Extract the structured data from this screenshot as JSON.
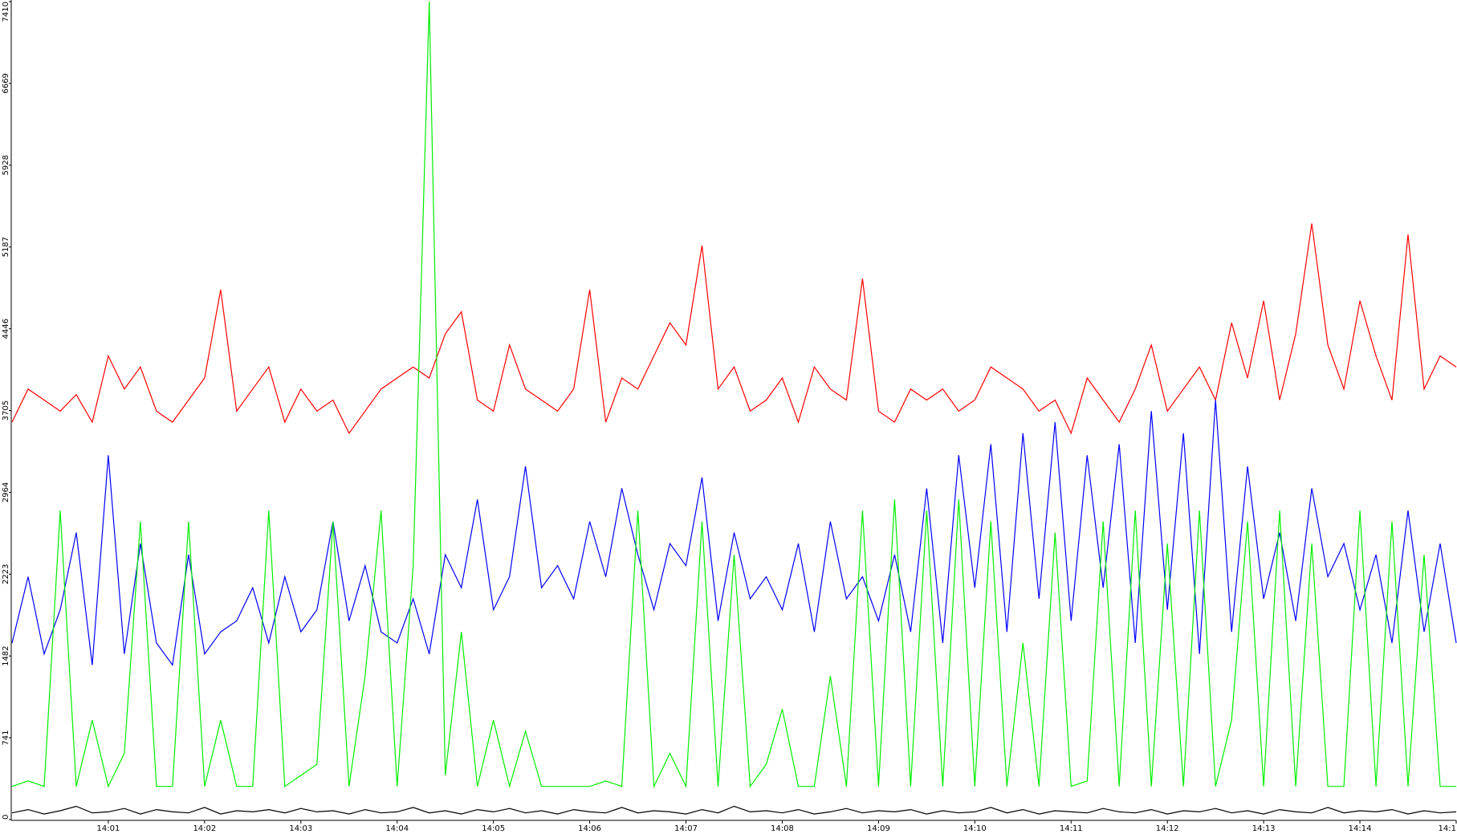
{
  "chart_data": {
    "type": "line",
    "categories": [
      null,
      null,
      null,
      null,
      null,
      null,
      "14:01",
      null,
      null,
      null,
      null,
      null,
      "14:02",
      null,
      null,
      null,
      null,
      null,
      "14:03",
      null,
      null,
      null,
      null,
      null,
      "14:04",
      null,
      null,
      null,
      null,
      null,
      "14:05",
      null,
      null,
      null,
      null,
      null,
      "14:06",
      null,
      null,
      null,
      null,
      null,
      "14:07",
      null,
      null,
      null,
      null,
      null,
      "14:08",
      null,
      null,
      null,
      null,
      null,
      "14:09",
      null,
      null,
      null,
      null,
      null,
      "14:10",
      null,
      null,
      null,
      null,
      null,
      "14:11",
      null,
      null,
      null,
      null,
      null,
      "14:12",
      null,
      null,
      null,
      null,
      null,
      "14:13",
      null,
      null,
      null,
      null,
      null,
      "14:14",
      null,
      null,
      null,
      null,
      null,
      "14:1"
    ],
    "series": [
      {
        "color": "#ff0000",
        "values": [
          3600,
          3900,
          3800,
          3700,
          3850,
          3600,
          4200,
          3900,
          4100,
          3700,
          3600,
          3800,
          4000,
          4800,
          3700,
          3900,
          4100,
          3600,
          3900,
          3700,
          3800,
          3500,
          3700,
          3900,
          4000,
          4100,
          4000,
          4400,
          4600,
          3800,
          3700,
          4300,
          3900,
          3800,
          3700,
          3900,
          4800,
          3600,
          4000,
          3900,
          4200,
          4500,
          4300,
          5200,
          3900,
          4100,
          3700,
          3800,
          4000,
          3600,
          4100,
          3900,
          3800,
          4900,
          3700,
          3600,
          3900,
          3800,
          3900,
          3700,
          3800,
          4100,
          4000,
          3900,
          3700,
          3800,
          3500,
          4000,
          3800,
          3600,
          3900,
          4300,
          3700,
          3900,
          4100,
          3800,
          4500,
          4000,
          4700,
          3800,
          4400,
          5400,
          4300,
          3900,
          4700,
          4200,
          3800,
          5300,
          3900,
          4200,
          4100
        ]
      },
      {
        "color": "#0000ff",
        "values": [
          1600,
          2200,
          1500,
          1900,
          2600,
          1400,
          3300,
          1500,
          2500,
          1600,
          1400,
          2400,
          1500,
          1700,
          1800,
          2100,
          1600,
          2200,
          1700,
          1900,
          2700,
          1800,
          2300,
          1700,
          1600,
          2000,
          1500,
          2400,
          2100,
          2900,
          1900,
          2200,
          3200,
          2100,
          2300,
          2000,
          2700,
          2200,
          3000,
          2400,
          1900,
          2500,
          2300,
          3100,
          1800,
          2600,
          2000,
          2200,
          1900,
          2500,
          1700,
          2700,
          2000,
          2200,
          1800,
          2400,
          1700,
          3000,
          1600,
          3300,
          2100,
          3400,
          1700,
          3500,
          2000,
          3600,
          1800,
          3300,
          2100,
          3400,
          1600,
          3700,
          1900,
          3500,
          1500,
          3800,
          1700,
          3200,
          2000,
          2600,
          1800,
          3000,
          2200,
          2500,
          1900,
          2400,
          1600,
          2800,
          1700,
          2500,
          1600
        ]
      },
      {
        "color": "#00ee00",
        "values": [
          300,
          350,
          300,
          2800,
          300,
          900,
          300,
          600,
          2700,
          300,
          300,
          2700,
          300,
          900,
          300,
          300,
          2800,
          300,
          400,
          500,
          2700,
          300,
          1300,
          2800,
          300,
          2300,
          7410,
          400,
          1700,
          300,
          900,
          300,
          800,
          300,
          300,
          300,
          300,
          350,
          300,
          2800,
          300,
          600,
          300,
          2700,
          300,
          2400,
          300,
          500,
          1000,
          300,
          300,
          1300,
          300,
          2800,
          300,
          2900,
          300,
          2800,
          300,
          2900,
          300,
          2700,
          300,
          1600,
          300,
          2600,
          300,
          350,
          2700,
          300,
          2800,
          300,
          2500,
          300,
          2800,
          300,
          900,
          2700,
          300,
          2800,
          300,
          2500,
          300,
          300,
          2800,
          300,
          2700,
          300,
          2400,
          300,
          300
        ]
      },
      {
        "color": "#000000",
        "values": [
          60,
          90,
          50,
          80,
          120,
          60,
          70,
          100,
          50,
          90,
          70,
          60,
          110,
          50,
          80,
          70,
          90,
          60,
          100,
          70,
          80,
          50,
          90,
          60,
          70,
          110,
          60,
          80,
          50,
          90,
          70,
          100,
          60,
          80,
          50,
          90,
          70,
          60,
          110,
          60,
          80,
          70,
          50,
          90,
          60,
          120,
          70,
          80,
          60,
          90,
          50,
          70,
          100,
          60,
          80,
          70,
          90,
          50,
          80,
          60,
          70,
          110,
          60,
          90,
          50,
          80,
          70,
          60,
          100,
          70,
          60,
          90,
          50,
          80,
          70,
          100,
          60,
          80,
          50,
          90,
          70,
          60,
          110,
          60,
          80,
          70,
          90,
          50,
          80,
          60,
          70
        ]
      }
    ],
    "ylim": [
      0,
      7410
    ],
    "yticks": [
      0,
      741,
      1482,
      2223,
      2964,
      3705,
      4446,
      5187,
      5928,
      6669,
      7410
    ]
  }
}
